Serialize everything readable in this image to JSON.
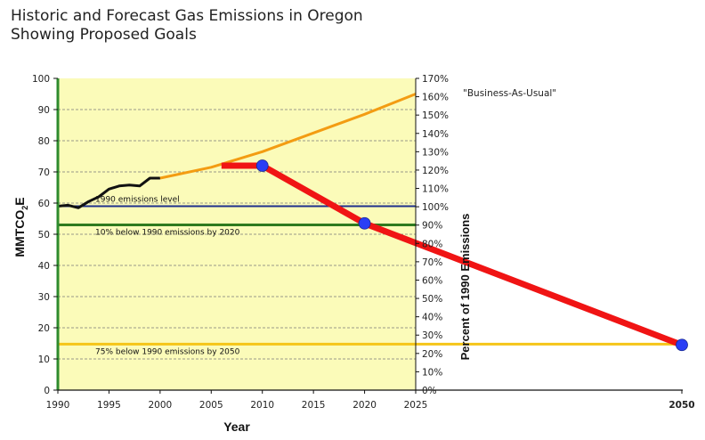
{
  "title_line1": "Historic and Forecast Gas Emissions in Oregon",
  "title_line2": "Showing Proposed Goals",
  "chart_data": {
    "type": "line",
    "title": "Historic and Forecast Gas Emissions in Oregon Showing Proposed Goals",
    "xlabel": "Year",
    "ylabel": "MMTCO",
    "ylabel_sub": "2",
    "ylabel_tail": "E",
    "y2label": "Percent of 1990 Emissions",
    "ylim": [
      0,
      100
    ],
    "y2lim": [
      0,
      170
    ],
    "x_ticks": [
      "1990",
      "1995",
      "2000",
      "2005",
      "2010",
      "2015",
      "2020",
      "2025"
    ],
    "x_extra_tick": "2050",
    "y_ticks": [
      "0",
      "10",
      "20",
      "30",
      "40",
      "50",
      "60",
      "70",
      "80",
      "90",
      "100"
    ],
    "y2_ticks": [
      "0%",
      "10%",
      "20%",
      "30%",
      "40%",
      "50%",
      "60%",
      "70%",
      "80%",
      "90%",
      "100%",
      "110%",
      "120%",
      "130%",
      "140%",
      "150%",
      "160%",
      "170%"
    ],
    "grid": "horizontal dashed",
    "plot_background": "#fbfbb9",
    "series": [
      {
        "role": "historic",
        "color": "#111111",
        "x": [
          1990,
          1991,
          1992,
          1993,
          1994,
          1995,
          1996,
          1997,
          1998,
          1999,
          2000
        ],
        "y": [
          59,
          59.3,
          58.5,
          60.5,
          62,
          64.5,
          65.5,
          65.8,
          65.5,
          68,
          68
        ]
      },
      {
        "name": "\"Business-As-Usual\"",
        "color": "#f39c12",
        "x": [
          2000,
          2005,
          2010,
          2015,
          2020,
          2025
        ],
        "y": [
          68,
          71.5,
          76.5,
          82.5,
          88.5,
          95
        ]
      },
      {
        "role": "proposed goals",
        "color": "#f01414",
        "x": [
          2006,
          2010,
          2020,
          2050
        ],
        "y": [
          72,
          72,
          53.5,
          14.5
        ],
        "markers": [
          [
            2010,
            72
          ],
          [
            2020,
            53.5
          ],
          [
            2050,
            14.5
          ]
        ],
        "marker_color": "#2a3ef5"
      }
    ],
    "levels": [
      {
        "label": "1990 emissions level",
        "y": 59,
        "color": "#1f2f8c"
      },
      {
        "label": "10% below 1990 emissions by 2020",
        "y": 53,
        "color": "#2e7a1e"
      },
      {
        "label": "75% below 1990 emissions by 2050",
        "y": 14.75,
        "color": "#f5c518"
      }
    ]
  }
}
